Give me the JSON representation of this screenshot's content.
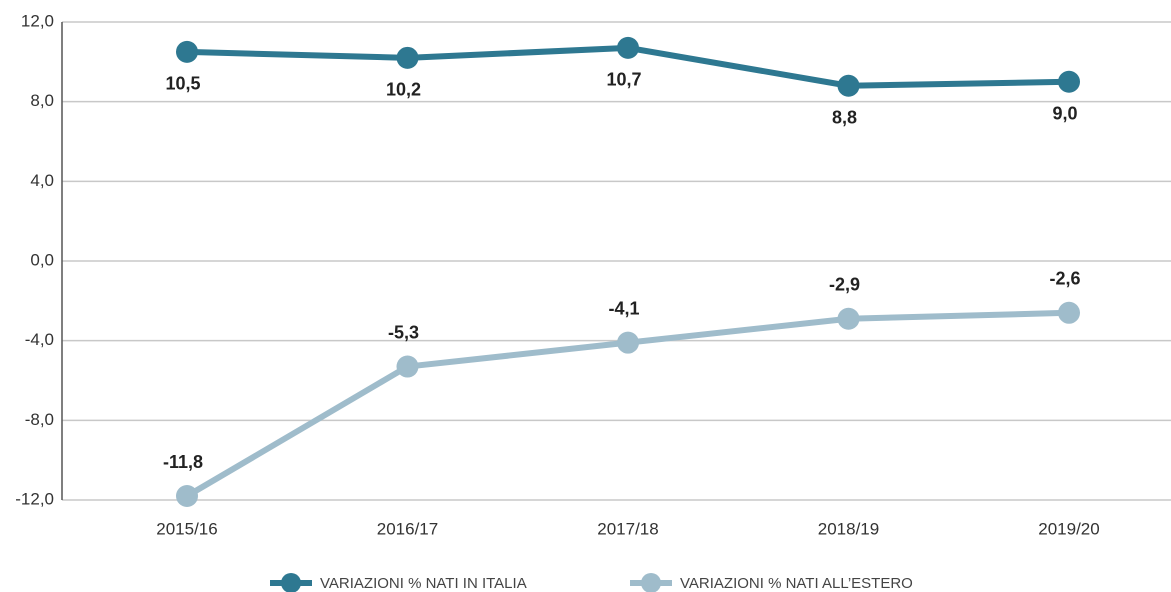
{
  "chart_data": {
    "type": "line",
    "categories": [
      "2015/16",
      "2016/17",
      "2017/18",
      "2018/19",
      "2019/20"
    ],
    "series": [
      {
        "name": "VARIAZIONI % NATI IN ITALIA",
        "color": "#2e7891",
        "values": [
          10.5,
          10.2,
          10.7,
          8.8,
          9.0
        ],
        "value_labels": [
          "10,5",
          "10,2",
          "10,7",
          "8,8",
          "9,0"
        ]
      },
      {
        "name": "VARIAZIONI % NATI ALL’ESTERO",
        "color": "#9fbccb",
        "values": [
          -11.8,
          -5.3,
          -4.1,
          -2.9,
          -2.6
        ],
        "value_labels": [
          "-11,8",
          "-5,3",
          "-4,1",
          "-2,9",
          "-2,6"
        ]
      }
    ],
    "ylim": [
      -12,
      12
    ],
    "yticks": [
      {
        "value": -12,
        "label": "-12,0"
      },
      {
        "value": -8,
        "label": "-8,0"
      },
      {
        "value": -4,
        "label": "-4,0"
      },
      {
        "value": 0,
        "label": "0,0"
      },
      {
        "value": 4,
        "label": "4,0"
      },
      {
        "value": 8,
        "label": "8,0"
      },
      {
        "value": 12,
        "label": "12,0"
      }
    ],
    "grid": true,
    "legend": "bottom"
  }
}
